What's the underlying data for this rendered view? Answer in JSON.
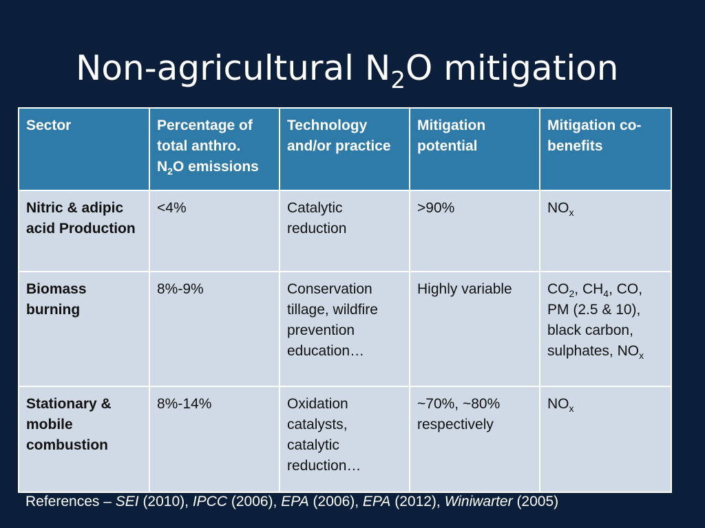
{
  "slide": {
    "title_prefix": "Non-agricultural N",
    "title_sub": "2",
    "title_suffix": "O mitigation"
  },
  "table": {
    "headers": {
      "sector": "Sector",
      "percentage_line1": "Percentage of",
      "percentage_line2": "total anthro.",
      "percentage_line3_prefix": "N",
      "percentage_line3_sub": "2",
      "percentage_line3_suffix": "O emissions",
      "technology": "Technology and/or practice",
      "potential": "Mitigation potential",
      "cobenefits": "Mitigation co-benefits"
    },
    "rows": [
      {
        "sector": "Nitric & adipic acid Production",
        "percentage": "<4%",
        "technology": "Catalytic reduction",
        "potential": ">90%",
        "cobenefits": {
          "no_prefix": "NO",
          "no_sub": "x"
        }
      },
      {
        "sector": "Biomass burning",
        "percentage": "8%-9%",
        "technology": "Conservation tillage, wildfire prevention education…",
        "potential": "Highly variable",
        "cobenefits": {
          "co2_prefix": "CO",
          "co2_sub": "2",
          "ch4_prefix": ", CH",
          "ch4_sub": "4",
          "rest": ", CO, PM (2.5 & 10), black carbon, sulphates, ",
          "no_prefix": "NO",
          "no_sub": "x"
        }
      },
      {
        "sector": "Stationary & mobile combustion",
        "percentage": "8%-14%",
        "technology": "Oxidation catalysts, catalytic reduction…",
        "potential": "~70%, ~80% respectively",
        "cobenefits": {
          "no_prefix": "NO",
          "no_sub": "x"
        }
      }
    ]
  },
  "references": {
    "lead": "References – ",
    "items": [
      {
        "author": "SEI",
        "year": " (2010), "
      },
      {
        "author": "IPCC",
        "year": " (2006), "
      },
      {
        "author": "EPA",
        "year": " (2006), "
      },
      {
        "author": "EPA",
        "year": " (2012), "
      },
      {
        "author": "Winiwarter",
        "year": " (2005)"
      }
    ]
  }
}
